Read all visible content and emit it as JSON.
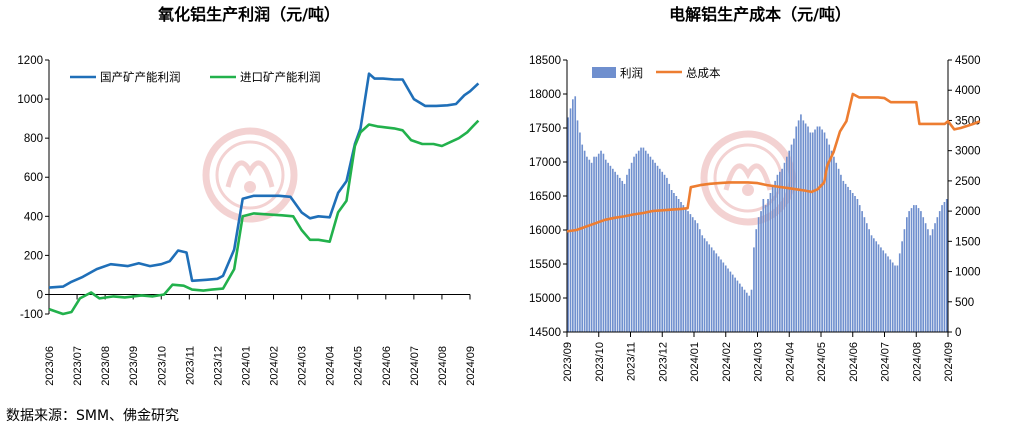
{
  "source_text": "数据来源：SMM、佛金研究",
  "chart_data": [
    {
      "type": "line",
      "title": "氧化铝生产利润（元/吨）",
      "ylim": [
        -100,
        1200
      ],
      "yticks": [
        "-100",
        "0",
        "200",
        "400",
        "600",
        "800",
        "1000",
        "1200"
      ],
      "x_tick_labels": [
        "2023/06",
        "2023/07",
        "2023/08",
        "2023/09",
        "2023/10",
        "2023/11",
        "2023/12",
        "2024/01",
        "2024/02",
        "2024/03",
        "2024/04",
        "2024/05",
        "2024/06",
        "2024/07",
        "2024/08",
        "2024/09"
      ],
      "legend_position": "top-left",
      "grid": false,
      "series": [
        {
          "name": "国产矿产能利润",
          "color": "#1f6fb8",
          "points": [
            [
              0,
              35
            ],
            [
              0.5,
              40
            ],
            [
              0.8,
              65
            ],
            [
              1.2,
              90
            ],
            [
              1.7,
              130
            ],
            [
              2.2,
              155
            ],
            [
              2.8,
              145
            ],
            [
              3.2,
              160
            ],
            [
              3.6,
              145
            ],
            [
              4.0,
              155
            ],
            [
              4.3,
              170
            ],
            [
              4.6,
              225
            ],
            [
              4.9,
              215
            ],
            [
              5.1,
              70
            ],
            [
              5.6,
              75
            ],
            [
              6.0,
              80
            ],
            [
              6.2,
              95
            ],
            [
              6.6,
              230
            ],
            [
              6.9,
              490
            ],
            [
              7.3,
              505
            ],
            [
              7.8,
              505
            ],
            [
              8.2,
              505
            ],
            [
              8.6,
              500
            ],
            [
              9.0,
              420
            ],
            [
              9.3,
              390
            ],
            [
              9.6,
              400
            ],
            [
              10.0,
              395
            ],
            [
              10.3,
              520
            ],
            [
              10.6,
              580
            ],
            [
              10.9,
              770
            ],
            [
              11.1,
              850
            ],
            [
              11.4,
              1130
            ],
            [
              11.6,
              1105
            ],
            [
              11.9,
              1105
            ],
            [
              12.3,
              1100
            ],
            [
              12.6,
              1100
            ],
            [
              13.0,
              1000
            ],
            [
              13.4,
              965
            ],
            [
              13.8,
              965
            ],
            [
              14.2,
              968
            ],
            [
              14.5,
              975
            ],
            [
              14.8,
              1020
            ],
            [
              15.0,
              1040
            ],
            [
              15.3,
              1080
            ]
          ]
        },
        {
          "name": "进口矿产能利润",
          "color": "#22b14c",
          "points": [
            [
              0,
              -75
            ],
            [
              0.5,
              -100
            ],
            [
              0.8,
              -90
            ],
            [
              1.1,
              -20
            ],
            [
              1.5,
              10
            ],
            [
              1.8,
              -20
            ],
            [
              2.3,
              -10
            ],
            [
              2.7,
              -15
            ],
            [
              3.3,
              -5
            ],
            [
              3.7,
              -10
            ],
            [
              4.1,
              0
            ],
            [
              4.4,
              50
            ],
            [
              4.8,
              45
            ],
            [
              5.1,
              25
            ],
            [
              5.5,
              20
            ],
            [
              5.8,
              25
            ],
            [
              6.2,
              30
            ],
            [
              6.6,
              130
            ],
            [
              6.9,
              400
            ],
            [
              7.3,
              415
            ],
            [
              7.8,
              410
            ],
            [
              8.3,
              405
            ],
            [
              8.7,
              400
            ],
            [
              9.0,
              330
            ],
            [
              9.3,
              280
            ],
            [
              9.6,
              280
            ],
            [
              10.0,
              270
            ],
            [
              10.3,
              420
            ],
            [
              10.6,
              480
            ],
            [
              10.9,
              760
            ],
            [
              11.1,
              830
            ],
            [
              11.4,
              870
            ],
            [
              11.7,
              860
            ],
            [
              12.0,
              855
            ],
            [
              12.3,
              850
            ],
            [
              12.6,
              840
            ],
            [
              12.9,
              790
            ],
            [
              13.3,
              770
            ],
            [
              13.7,
              770
            ],
            [
              14.0,
              760
            ],
            [
              14.3,
              780
            ],
            [
              14.6,
              800
            ],
            [
              14.9,
              830
            ],
            [
              15.1,
              860
            ],
            [
              15.3,
              890
            ]
          ]
        }
      ]
    },
    {
      "type": "bar+line",
      "title": "电解铝生产成本（元/吨）",
      "ylim_left": [
        14500,
        18500
      ],
      "yticks_left": [
        "14500",
        "15000",
        "15500",
        "16000",
        "16500",
        "17000",
        "17500",
        "18000",
        "18500"
      ],
      "ylim_right": [
        0,
        4500
      ],
      "yticks_right": [
        "0",
        "500",
        "1000",
        "1500",
        "2000",
        "2500",
        "3000",
        "3500",
        "4000",
        "4500"
      ],
      "x_tick_labels": [
        "2023/09",
        "2023/10",
        "2023/11",
        "2023/12",
        "2024/01",
        "2024/02",
        "2024/03",
        "2024/04",
        "2024/05",
        "2024/06",
        "2024/07",
        "2024/08",
        "2024/09"
      ],
      "legend_position": "top-left",
      "grid": false,
      "series": [
        {
          "name": "利润",
          "axis": "right",
          "color": "#6f8fce",
          "values": [
            3550,
            3700,
            3850,
            3900,
            3500,
            3300,
            3100,
            3000,
            2900,
            2850,
            2800,
            2900,
            2900,
            2950,
            3000,
            2950,
            2850,
            2800,
            2750,
            2700,
            2650,
            2600,
            2550,
            2500,
            2450,
            2600,
            2700,
            2800,
            2900,
            2950,
            3000,
            3050,
            3050,
            3000,
            2950,
            2900,
            2850,
            2800,
            2750,
            2700,
            2650,
            2600,
            2550,
            2450,
            2350,
            2300,
            2250,
            2200,
            2150,
            2100,
            2050,
            2000,
            1950,
            1900,
            1850,
            1800,
            1700,
            1600,
            1550,
            1500,
            1450,
            1400,
            1350,
            1300,
            1250,
            1200,
            1150,
            1100,
            1050,
            1000,
            950,
            900,
            850,
            800,
            750,
            700,
            650,
            600,
            700,
            1400,
            1700,
            1900,
            2000,
            2200,
            2100,
            2200,
            2300,
            2400,
            2500,
            2600,
            2650,
            2700,
            2800,
            2900,
            3000,
            3100,
            3200,
            3400,
            3500,
            3600,
            3500,
            3450,
            3400,
            3300,
            3300,
            3350,
            3400,
            3400,
            3350,
            3300,
            3200,
            3100,
            3000,
            2900,
            2800,
            2700,
            2600,
            2500,
            2450,
            2400,
            2350,
            2300,
            2250,
            2200,
            2100,
            2000,
            1900,
            1800,
            1700,
            1600,
            1550,
            1500,
            1450,
            1400,
            1350,
            1300,
            1250,
            1200,
            1150,
            1100,
            1100,
            1300,
            1500,
            1700,
            1900,
            2000,
            2050,
            2100,
            2100,
            2050,
            2000,
            1900,
            1800,
            1700,
            1600,
            1700,
            1800,
            1900,
            2000,
            2100,
            2150,
            2200
          ]
        },
        {
          "name": "总成本",
          "axis": "left",
          "color": "#ed7d31",
          "points": [
            [
              0,
              15980
            ],
            [
              0.3,
              16000
            ],
            [
              0.6,
              16050
            ],
            [
              0.9,
              16100
            ],
            [
              1.2,
              16150
            ],
            [
              1.5,
              16180
            ],
            [
              1.8,
              16200
            ],
            [
              2.1,
              16230
            ],
            [
              2.4,
              16250
            ],
            [
              2.7,
              16280
            ],
            [
              3.0,
              16290
            ],
            [
              3.3,
              16300
            ],
            [
              3.6,
              16310
            ],
            [
              3.8,
              16320
            ],
            [
              3.9,
              16630
            ],
            [
              4.2,
              16660
            ],
            [
              4.5,
              16680
            ],
            [
              4.8,
              16690
            ],
            [
              5.1,
              16700
            ],
            [
              5.4,
              16700
            ],
            [
              5.7,
              16700
            ],
            [
              6.0,
              16690
            ],
            [
              6.3,
              16660
            ],
            [
              6.6,
              16640
            ],
            [
              6.9,
              16620
            ],
            [
              7.2,
              16600
            ],
            [
              7.5,
              16580
            ],
            [
              7.7,
              16560
            ],
            [
              7.9,
              16600
            ],
            [
              8.1,
              16700
            ],
            [
              8.2,
              16950
            ],
            [
              8.4,
              17150
            ],
            [
              8.6,
              17450
            ],
            [
              8.8,
              17600
            ],
            [
              9.0,
              18000
            ],
            [
              9.2,
              17950
            ],
            [
              9.5,
              17950
            ],
            [
              9.8,
              17950
            ],
            [
              10.0,
              17940
            ],
            [
              10.2,
              17880
            ],
            [
              10.5,
              17880
            ],
            [
              10.8,
              17880
            ],
            [
              11.0,
              17880
            ],
            [
              11.1,
              17560
            ],
            [
              11.4,
              17560
            ],
            [
              11.7,
              17560
            ],
            [
              11.9,
              17560
            ],
            [
              12.0,
              17600
            ],
            [
              12.2,
              17480
            ],
            [
              12.4,
              17500
            ],
            [
              12.6,
              17530
            ],
            [
              12.8,
              17560
            ],
            [
              13.0,
              17600
            ]
          ]
        }
      ]
    }
  ]
}
